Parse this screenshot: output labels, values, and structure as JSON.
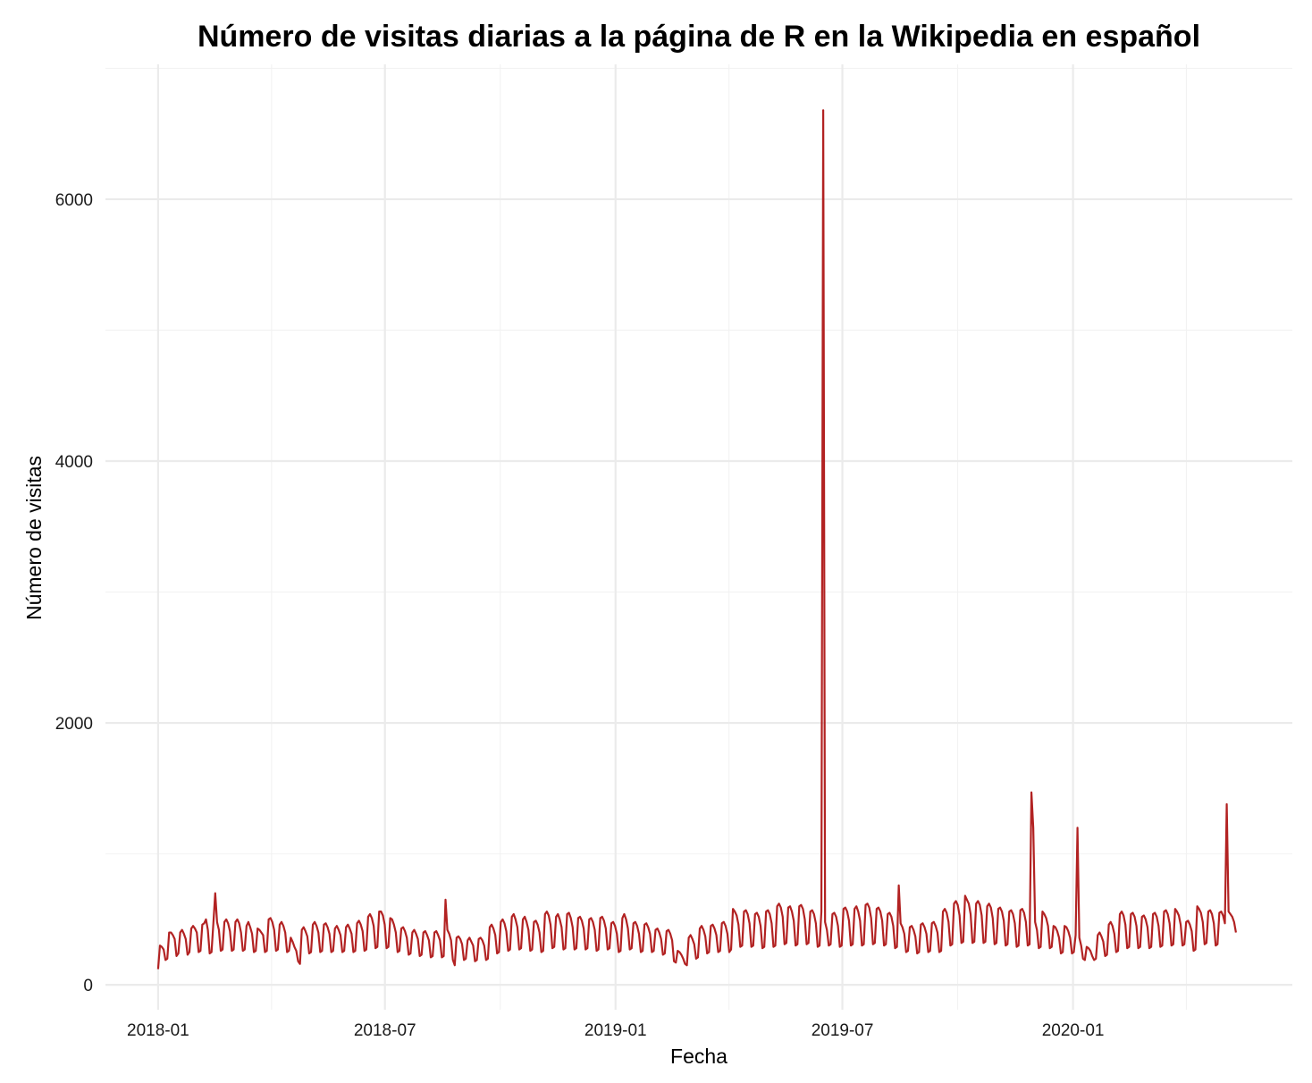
{
  "chart_data": {
    "type": "line",
    "title": "Número de visitas diarias a la página de R en la Wikipedia en español",
    "xlabel": "Fecha",
    "ylabel": "Número de visitas",
    "x_ticks": [
      "2018-01",
      "2018-07",
      "2019-01",
      "2019-07",
      "2020-01"
    ],
    "y_ticks": [
      "0",
      "2000",
      "4000",
      "6000"
    ],
    "x_range": [
      "2017-11-20",
      "2020-06-24"
    ],
    "ylim": [
      -190,
      7030
    ],
    "grid": true,
    "line_color": "#b22222",
    "series": [
      {
        "x_start": "2018-01-01",
        "x_end": "2020-05-10",
        "step_days": 1,
        "weekly_pattern": "weekday highs, weekend lows",
        "values": [
          120,
          300,
          290,
          270,
          190,
          200,
          400,
          400,
          380,
          350,
          220,
          240,
          400,
          420,
          390,
          350,
          230,
          250,
          430,
          450,
          430,
          400,
          250,
          260,
          460,
          470,
          500,
          420,
          240,
          250,
          470,
          700,
          480,
          420,
          260,
          270,
          480,
          500,
          470,
          410,
          260,
          270,
          480,
          500,
          470,
          400,
          260,
          270,
          450,
          480,
          440,
          390,
          250,
          260,
          430,
          420,
          400,
          380,
          250,
          260,
          500,
          510,
          480,
          420,
          260,
          270,
          460,
          480,
          450,
          400,
          250,
          260,
          360,
          330,
          290,
          260,
          180,
          160,
          420,
          440,
          410,
          370,
          240,
          250,
          460,
          480,
          450,
          400,
          250,
          260,
          460,
          470,
          440,
          390,
          250,
          260,
          430,
          450,
          420,
          380,
          250,
          260,
          440,
          460,
          430,
          390,
          250,
          260,
          470,
          490,
          460,
          410,
          260,
          270,
          520,
          540,
          510,
          450,
          280,
          290,
          560,
          560,
          530,
          460,
          280,
          290,
          510,
          500,
          460,
          400,
          250,
          260,
          430,
          440,
          410,
          360,
          230,
          240,
          400,
          420,
          390,
          350,
          220,
          230,
          400,
          410,
          380,
          340,
          210,
          220,
          400,
          410,
          380,
          340,
          210,
          220,
          650,
          420,
          390,
          340,
          190,
          150,
          360,
          370,
          350,
          310,
          190,
          200,
          340,
          360,
          330,
          300,
          180,
          190,
          350,
          360,
          340,
          300,
          190,
          200,
          440,
          460,
          430,
          380,
          240,
          250,
          480,
          500,
          470,
          410,
          260,
          270,
          520,
          540,
          500,
          440,
          270,
          280,
          500,
          520,
          480,
          420,
          260,
          270,
          480,
          490,
          460,
          400,
          250,
          260,
          540,
          560,
          530,
          460,
          280,
          290,
          520,
          540,
          500,
          440,
          270,
          280,
          540,
          550,
          510,
          440,
          270,
          280,
          510,
          520,
          490,
          430,
          270,
          280,
          500,
          510,
          480,
          420,
          260,
          270,
          510,
          520,
          490,
          430,
          270,
          280,
          470,
          480,
          450,
          390,
          250,
          260,
          510,
          540,
          500,
          430,
          270,
          280,
          470,
          480,
          450,
          390,
          250,
          260,
          460,
          470,
          440,
          390,
          250,
          260,
          420,
          430,
          400,
          350,
          230,
          240,
          410,
          420,
          390,
          340,
          180,
          170,
          260,
          250,
          230,
          200,
          160,
          150,
          360,
          380,
          350,
          310,
          200,
          210,
          430,
          450,
          420,
          370,
          240,
          250,
          450,
          460,
          430,
          380,
          250,
          260,
          470,
          480,
          450,
          390,
          250,
          270,
          580,
          560,
          530,
          460,
          290,
          300,
          560,
          570,
          540,
          470,
          290,
          300,
          540,
          550,
          520,
          450,
          280,
          290,
          560,
          570,
          540,
          470,
          290,
          300,
          600,
          620,
          590,
          520,
          310,
          320,
          590,
          600,
          560,
          490,
          300,
          310,
          600,
          610,
          580,
          500,
          310,
          320,
          560,
          570,
          540,
          470,
          290,
          300,
          560,
          6680,
          480,
          420,
          300,
          310,
          540,
          550,
          520,
          450,
          290,
          300,
          580,
          590,
          560,
          490,
          300,
          310,
          580,
          600,
          560,
          490,
          300,
          310,
          610,
          620,
          590,
          510,
          310,
          320,
          580,
          590,
          560,
          490,
          300,
          310,
          540,
          550,
          520,
          450,
          280,
          290,
          760,
          470,
          440,
          390,
          250,
          260,
          440,
          450,
          420,
          370,
          240,
          250,
          460,
          470,
          440,
          390,
          250,
          260,
          470,
          480,
          450,
          400,
          250,
          260,
          560,
          580,
          550,
          480,
          300,
          310,
          620,
          640,
          610,
          530,
          320,
          330,
          680,
          650,
          620,
          540,
          320,
          330,
          620,
          640,
          610,
          530,
          320,
          330,
          600,
          620,
          590,
          510,
          310,
          320,
          580,
          590,
          560,
          490,
          300,
          310,
          560,
          570,
          540,
          470,
          290,
          300,
          570,
          580,
          550,
          480,
          300,
          310,
          1470,
          1200,
          480,
          420,
          280,
          290,
          560,
          540,
          510,
          450,
          280,
          290,
          450,
          440,
          410,
          360,
          240,
          250,
          450,
          440,
          410,
          360,
          240,
          250,
          380,
          1200,
          360,
          300,
          200,
          190,
          290,
          280,
          260,
          220,
          190,
          200,
          380,
          400,
          370,
          330,
          220,
          230,
          460,
          480,
          450,
          390,
          250,
          260,
          540,
          560,
          530,
          460,
          280,
          290,
          540,
          550,
          520,
          450,
          280,
          290,
          520,
          530,
          500,
          440,
          280,
          290,
          540,
          550,
          520,
          450,
          290,
          300,
          560,
          570,
          540,
          470,
          300,
          310,
          580,
          560,
          530,
          460,
          300,
          310,
          480,
          490,
          460,
          410,
          260,
          270,
          600,
          580,
          550,
          480,
          310,
          320,
          560,
          570,
          540,
          470,
          300,
          310,
          550,
          560,
          530,
          470,
          1380,
          560,
          540,
          520,
          480,
          400
        ]
      }
    ]
  }
}
